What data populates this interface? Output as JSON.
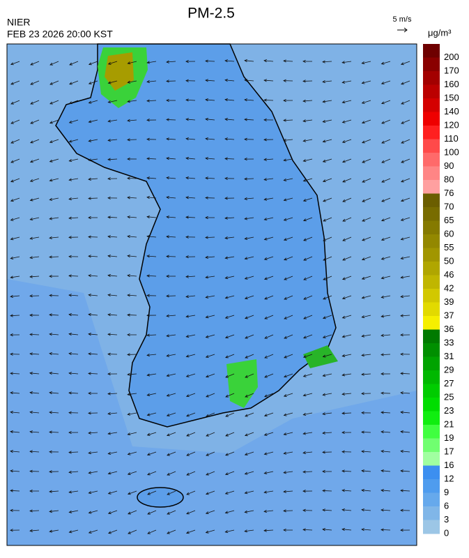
{
  "header": {
    "title": "PM-2.5",
    "agency": "NIER",
    "datetime": "FEB 23 2026 20:00 KST",
    "wind_scale": "5 m/s"
  },
  "colorbar": {
    "unit": "μg/m³",
    "levels": [
      {
        "label": "200",
        "color": "#6e0000"
      },
      {
        "label": "170",
        "color": "#8a0000"
      },
      {
        "label": "160",
        "color": "#a30000"
      },
      {
        "label": "150",
        "color": "#bb0000"
      },
      {
        "label": "140",
        "color": "#d40000"
      },
      {
        "label": "120",
        "color": "#ee0000"
      },
      {
        "label": "110",
        "color": "#ff2020"
      },
      {
        "label": "100",
        "color": "#ff4a4a"
      },
      {
        "label": "90",
        "color": "#ff6a6a"
      },
      {
        "label": "80",
        "color": "#ff8585"
      },
      {
        "label": "76",
        "color": "#ffa0a0"
      },
      {
        "label": "70",
        "color": "#6b5e00"
      },
      {
        "label": "65",
        "color": "#786c00"
      },
      {
        "label": "60",
        "color": "#857a00"
      },
      {
        "label": "55",
        "color": "#938800"
      },
      {
        "label": "50",
        "color": "#a19600"
      },
      {
        "label": "46",
        "color": "#b0a600"
      },
      {
        "label": "42",
        "color": "#c0b600"
      },
      {
        "label": "39",
        "color": "#d2c800"
      },
      {
        "label": "37",
        "color": "#e2da00"
      },
      {
        "label": "36",
        "color": "#f5ef00"
      },
      {
        "label": "33",
        "color": "#007a00"
      },
      {
        "label": "31",
        "color": "#008f00"
      },
      {
        "label": "29",
        "color": "#00a300"
      },
      {
        "label": "27",
        "color": "#00b800"
      },
      {
        "label": "25",
        "color": "#00cc00"
      },
      {
        "label": "23",
        "color": "#00dd00"
      },
      {
        "label": "21",
        "color": "#10ee10"
      },
      {
        "label": "19",
        "color": "#40ff40"
      },
      {
        "label": "17",
        "color": "#70ff70"
      },
      {
        "label": "16",
        "color": "#a0ffa0"
      },
      {
        "label": "12",
        "color": "#3c8ff0"
      },
      {
        "label": "9",
        "color": "#4f9cee"
      },
      {
        "label": "6",
        "color": "#66a9ec"
      },
      {
        "label": "3",
        "color": "#80b6e8"
      },
      {
        "label": "0",
        "color": "#9cc6e6"
      }
    ]
  }
}
